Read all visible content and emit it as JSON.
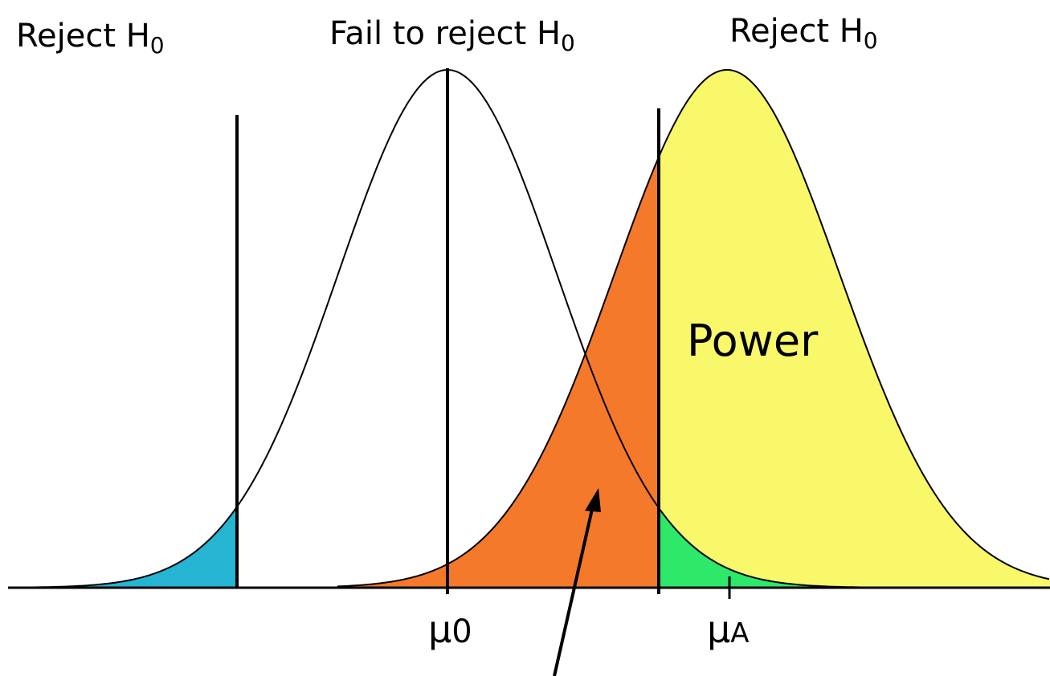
{
  "regions": [
    {
      "text": "Reject H",
      "subscript": "0"
    },
    {
      "text": "Fail to reject H",
      "subscript": "0"
    },
    {
      "text": "Reject H",
      "subscript": "0"
    }
  ],
  "area_label": "Power",
  "axis_labels": [
    {
      "text": "μ",
      "subscript": "0"
    },
    {
      "text": "μ",
      "subscript": "A"
    }
  ]
}
